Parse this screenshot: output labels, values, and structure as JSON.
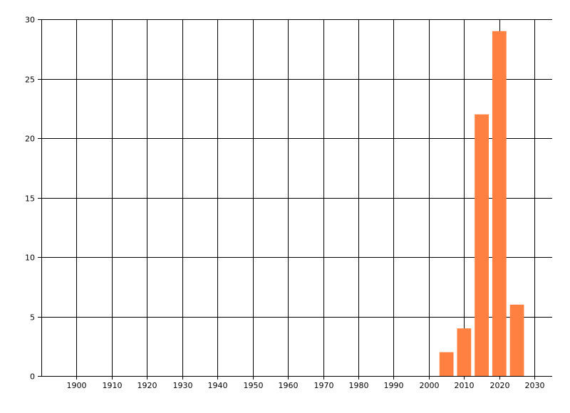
{
  "chart_data": {
    "type": "bar",
    "title": "",
    "xlabel": "",
    "ylabel": "",
    "x": [
      2005,
      2010,
      2015,
      2020,
      2025
    ],
    "values": [
      2,
      4,
      22,
      29,
      6
    ],
    "bar_width_years": 4,
    "xlim": [
      1890,
      2035
    ],
    "ylim": [
      0,
      30
    ],
    "xticks": [
      1900,
      1910,
      1920,
      1930,
      1940,
      1950,
      1960,
      1970,
      1980,
      1990,
      2000,
      2010,
      2020,
      2030
    ],
    "yticks": [
      0,
      5,
      10,
      15,
      20,
      25,
      30
    ],
    "grid": true,
    "legend": "none",
    "bar_color": "#ff8040",
    "grid_color": "#000000"
  }
}
